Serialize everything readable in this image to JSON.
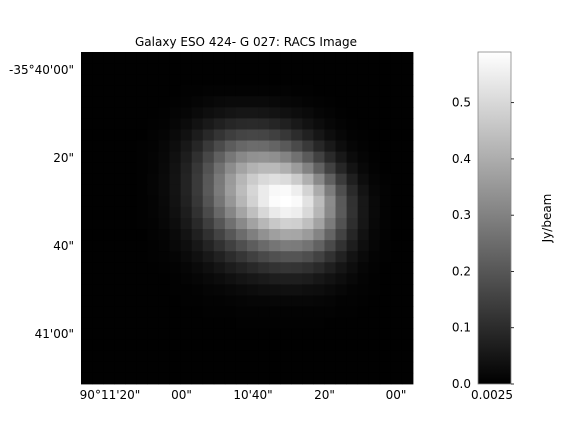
{
  "chart_data": {
    "type": "heatmap",
    "title": "Galaxy ESO 424- G 027: RACS Image",
    "x_tick_labels": [
      "90°11'20\"",
      "00\"",
      "10'40\"",
      "20\"",
      "00\""
    ],
    "y_tick_labels": [
      "-35°40'00\"",
      "20\"",
      "40\"",
      "41'00\""
    ],
    "colorbar": {
      "label": "Jy/beam",
      "ticks": [
        0.0,
        0.1,
        0.2,
        0.3,
        0.4,
        0.5
      ],
      "tick_labels": [
        "0.0",
        "0.1",
        "0.2",
        "0.3",
        "0.4",
        "0.5"
      ],
      "x_tick_label": "0.0025",
      "vmin": 0.0,
      "vmax": 0.59,
      "colormap": "gray"
    },
    "grid": false,
    "values": [
      [
        0.002,
        0.002,
        0.002,
        0.002,
        0.002,
        0.002,
        0.002,
        0.002,
        0.002,
        0.002,
        0.002,
        0.002,
        0.002,
        0.002,
        0.002,
        0.002,
        0.002,
        0.002,
        0.002,
        0.002,
        0.002,
        0.002,
        0.002,
        0.002,
        0.002,
        0.002,
        0.002,
        0.002,
        0.002,
        0.002
      ],
      [
        0.002,
        0.002,
        0.002,
        0.002,
        0.002,
        0.002,
        0.002,
        0.002,
        0.002,
        0.002,
        0.002,
        0.002,
        0.002,
        0.002,
        0.002,
        0.002,
        0.002,
        0.002,
        0.002,
        0.002,
        0.002,
        0.002,
        0.002,
        0.002,
        0.002,
        0.002,
        0.002,
        0.002,
        0.002,
        0.002
      ],
      [
        0.002,
        0.002,
        0.002,
        0.002,
        0.002,
        0.002,
        0.002,
        0.002,
        0.002,
        0.002,
        0.003,
        0.003,
        0.003,
        0.003,
        0.003,
        0.003,
        0.003,
        0.003,
        0.003,
        0.003,
        0.002,
        0.002,
        0.002,
        0.002,
        0.002,
        0.002,
        0.002,
        0.002,
        0.002,
        0.002
      ],
      [
        0.002,
        0.002,
        0.002,
        0.002,
        0.002,
        0.002,
        0.002,
        0.002,
        0.003,
        0.004,
        0.005,
        0.006,
        0.007,
        0.008,
        0.008,
        0.008,
        0.008,
        0.007,
        0.006,
        0.005,
        0.004,
        0.003,
        0.002,
        0.002,
        0.002,
        0.002,
        0.002,
        0.002,
        0.002,
        0.002
      ],
      [
        0.002,
        0.002,
        0.002,
        0.002,
        0.002,
        0.002,
        0.002,
        0.003,
        0.005,
        0.008,
        0.012,
        0.016,
        0.02,
        0.022,
        0.023,
        0.023,
        0.022,
        0.02,
        0.017,
        0.013,
        0.009,
        0.006,
        0.004,
        0.003,
        0.002,
        0.002,
        0.002,
        0.002,
        0.002,
        0.002
      ],
      [
        0.002,
        0.002,
        0.002,
        0.002,
        0.002,
        0.002,
        0.003,
        0.005,
        0.009,
        0.015,
        0.023,
        0.032,
        0.04,
        0.046,
        0.05,
        0.051,
        0.049,
        0.045,
        0.038,
        0.03,
        0.022,
        0.014,
        0.009,
        0.005,
        0.003,
        0.002,
        0.002,
        0.002,
        0.002,
        0.002
      ],
      [
        0.002,
        0.002,
        0.002,
        0.002,
        0.002,
        0.002,
        0.004,
        0.008,
        0.015,
        0.026,
        0.041,
        0.058,
        0.074,
        0.087,
        0.095,
        0.097,
        0.094,
        0.086,
        0.073,
        0.058,
        0.042,
        0.028,
        0.016,
        0.009,
        0.005,
        0.003,
        0.002,
        0.002,
        0.002,
        0.002
      ],
      [
        0.002,
        0.002,
        0.002,
        0.002,
        0.002,
        0.003,
        0.006,
        0.012,
        0.023,
        0.04,
        0.064,
        0.092,
        0.12,
        0.143,
        0.158,
        0.163,
        0.159,
        0.147,
        0.127,
        0.102,
        0.076,
        0.051,
        0.031,
        0.017,
        0.008,
        0.004,
        0.002,
        0.002,
        0.002,
        0.002
      ],
      [
        0.002,
        0.002,
        0.002,
        0.002,
        0.002,
        0.004,
        0.008,
        0.016,
        0.031,
        0.055,
        0.089,
        0.131,
        0.174,
        0.212,
        0.239,
        0.25,
        0.247,
        0.232,
        0.206,
        0.171,
        0.131,
        0.091,
        0.057,
        0.031,
        0.015,
        0.006,
        0.003,
        0.002,
        0.002,
        0.002
      ],
      [
        0.002,
        0.002,
        0.002,
        0.002,
        0.002,
        0.004,
        0.009,
        0.019,
        0.038,
        0.068,
        0.111,
        0.165,
        0.223,
        0.275,
        0.315,
        0.336,
        0.341,
        0.331,
        0.303,
        0.262,
        0.209,
        0.151,
        0.097,
        0.055,
        0.026,
        0.011,
        0.004,
        0.002,
        0.002,
        0.002
      ],
      [
        0.002,
        0.002,
        0.002,
        0.002,
        0.003,
        0.005,
        0.01,
        0.021,
        0.042,
        0.077,
        0.127,
        0.19,
        0.259,
        0.324,
        0.377,
        0.411,
        0.428,
        0.427,
        0.405,
        0.362,
        0.3,
        0.225,
        0.15,
        0.087,
        0.043,
        0.018,
        0.006,
        0.003,
        0.002,
        0.002
      ],
      [
        0.002,
        0.002,
        0.002,
        0.002,
        0.003,
        0.005,
        0.011,
        0.022,
        0.044,
        0.081,
        0.135,
        0.204,
        0.281,
        0.356,
        0.421,
        0.469,
        0.502,
        0.516,
        0.506,
        0.469,
        0.405,
        0.318,
        0.222,
        0.136,
        0.071,
        0.031,
        0.011,
        0.004,
        0.002,
        0.002
      ],
      [
        0.002,
        0.002,
        0.002,
        0.002,
        0.003,
        0.005,
        0.011,
        0.022,
        0.044,
        0.081,
        0.135,
        0.205,
        0.284,
        0.363,
        0.435,
        0.496,
        0.544,
        0.574,
        0.578,
        0.55,
        0.488,
        0.396,
        0.286,
        0.18,
        0.097,
        0.045,
        0.017,
        0.006,
        0.003,
        0.002
      ],
      [
        0.002,
        0.002,
        0.002,
        0.002,
        0.003,
        0.005,
        0.01,
        0.021,
        0.042,
        0.077,
        0.128,
        0.194,
        0.27,
        0.347,
        0.421,
        0.487,
        0.543,
        0.582,
        0.597,
        0.578,
        0.523,
        0.434,
        0.321,
        0.207,
        0.114,
        0.053,
        0.02,
        0.007,
        0.003,
        0.002
      ],
      [
        0.002,
        0.002,
        0.002,
        0.002,
        0.002,
        0.004,
        0.009,
        0.019,
        0.037,
        0.068,
        0.113,
        0.172,
        0.24,
        0.31,
        0.379,
        0.443,
        0.499,
        0.541,
        0.561,
        0.55,
        0.503,
        0.422,
        0.317,
        0.208,
        0.116,
        0.054,
        0.021,
        0.007,
        0.003,
        0.002
      ],
      [
        0.002,
        0.002,
        0.002,
        0.002,
        0.002,
        0.004,
        0.008,
        0.016,
        0.031,
        0.057,
        0.094,
        0.143,
        0.199,
        0.259,
        0.318,
        0.374,
        0.424,
        0.463,
        0.484,
        0.479,
        0.443,
        0.376,
        0.285,
        0.189,
        0.106,
        0.05,
        0.019,
        0.007,
        0.003,
        0.002
      ],
      [
        0.002,
        0.002,
        0.002,
        0.002,
        0.002,
        0.003,
        0.006,
        0.012,
        0.024,
        0.044,
        0.073,
        0.111,
        0.155,
        0.202,
        0.249,
        0.294,
        0.335,
        0.368,
        0.387,
        0.385,
        0.358,
        0.305,
        0.232,
        0.155,
        0.088,
        0.042,
        0.016,
        0.006,
        0.002,
        0.002
      ],
      [
        0.002,
        0.002,
        0.002,
        0.002,
        0.002,
        0.003,
        0.005,
        0.009,
        0.018,
        0.032,
        0.053,
        0.081,
        0.113,
        0.148,
        0.183,
        0.216,
        0.246,
        0.271,
        0.286,
        0.285,
        0.265,
        0.226,
        0.172,
        0.115,
        0.066,
        0.032,
        0.013,
        0.005,
        0.002,
        0.002
      ],
      [
        0.002,
        0.002,
        0.002,
        0.002,
        0.002,
        0.002,
        0.004,
        0.007,
        0.012,
        0.022,
        0.036,
        0.055,
        0.077,
        0.101,
        0.125,
        0.148,
        0.168,
        0.185,
        0.195,
        0.194,
        0.18,
        0.153,
        0.116,
        0.078,
        0.045,
        0.022,
        0.009,
        0.004,
        0.002,
        0.002
      ],
      [
        0.002,
        0.002,
        0.002,
        0.002,
        0.002,
        0.002,
        0.003,
        0.005,
        0.008,
        0.014,
        0.023,
        0.035,
        0.049,
        0.064,
        0.079,
        0.093,
        0.106,
        0.116,
        0.122,
        0.121,
        0.112,
        0.095,
        0.072,
        0.049,
        0.029,
        0.015,
        0.007,
        0.003,
        0.002,
        0.002
      ],
      [
        0.002,
        0.002,
        0.002,
        0.002,
        0.002,
        0.002,
        0.002,
        0.003,
        0.005,
        0.009,
        0.014,
        0.02,
        0.028,
        0.037,
        0.046,
        0.054,
        0.061,
        0.067,
        0.07,
        0.069,
        0.064,
        0.054,
        0.042,
        0.029,
        0.018,
        0.009,
        0.005,
        0.003,
        0.002,
        0.002
      ],
      [
        0.002,
        0.002,
        0.002,
        0.002,
        0.002,
        0.002,
        0.002,
        0.003,
        0.004,
        0.005,
        0.008,
        0.011,
        0.015,
        0.019,
        0.024,
        0.028,
        0.032,
        0.035,
        0.036,
        0.036,
        0.033,
        0.029,
        0.022,
        0.016,
        0.01,
        0.006,
        0.004,
        0.002,
        0.002,
        0.002
      ],
      [
        0.002,
        0.002,
        0.002,
        0.002,
        0.002,
        0.002,
        0.002,
        0.002,
        0.003,
        0.004,
        0.005,
        0.006,
        0.008,
        0.01,
        0.012,
        0.013,
        0.015,
        0.016,
        0.017,
        0.017,
        0.016,
        0.014,
        0.011,
        0.008,
        0.006,
        0.004,
        0.003,
        0.002,
        0.002,
        0.002
      ],
      [
        0.002,
        0.002,
        0.002,
        0.002,
        0.002,
        0.002,
        0.002,
        0.002,
        0.002,
        0.003,
        0.003,
        0.004,
        0.005,
        0.005,
        0.006,
        0.007,
        0.007,
        0.008,
        0.008,
        0.008,
        0.008,
        0.007,
        0.006,
        0.005,
        0.004,
        0.003,
        0.002,
        0.002,
        0.002,
        0.002
      ],
      [
        0.002,
        0.002,
        0.002,
        0.002,
        0.002,
        0.002,
        0.002,
        0.002,
        0.002,
        0.002,
        0.003,
        0.003,
        0.003,
        0.003,
        0.004,
        0.004,
        0.004,
        0.004,
        0.004,
        0.004,
        0.004,
        0.004,
        0.003,
        0.003,
        0.003,
        0.002,
        0.002,
        0.002,
        0.002,
        0.002
      ],
      [
        0.002,
        0.002,
        0.002,
        0.002,
        0.002,
        0.002,
        0.002,
        0.002,
        0.002,
        0.002,
        0.002,
        0.002,
        0.002,
        0.003,
        0.003,
        0.003,
        0.003,
        0.003,
        0.003,
        0.003,
        0.003,
        0.003,
        0.002,
        0.002,
        0.002,
        0.002,
        0.002,
        0.002,
        0.002,
        0.002
      ],
      [
        0.002,
        0.002,
        0.002,
        0.002,
        0.002,
        0.002,
        0.002,
        0.002,
        0.002,
        0.002,
        0.002,
        0.002,
        0.002,
        0.002,
        0.002,
        0.002,
        0.002,
        0.002,
        0.002,
        0.002,
        0.002,
        0.002,
        0.002,
        0.002,
        0.002,
        0.002,
        0.002,
        0.002,
        0.002,
        0.002
      ],
      [
        0.002,
        0.002,
        0.002,
        0.002,
        0.002,
        0.002,
        0.002,
        0.002,
        0.002,
        0.002,
        0.002,
        0.002,
        0.002,
        0.002,
        0.002,
        0.002,
        0.002,
        0.002,
        0.002,
        0.002,
        0.002,
        0.002,
        0.002,
        0.002,
        0.002,
        0.002,
        0.002,
        0.002,
        0.002,
        0.002
      ],
      [
        0.002,
        0.002,
        0.002,
        0.002,
        0.002,
        0.002,
        0.002,
        0.002,
        0.002,
        0.002,
        0.002,
        0.002,
        0.002,
        0.002,
        0.002,
        0.002,
        0.002,
        0.002,
        0.002,
        0.002,
        0.002,
        0.002,
        0.002,
        0.002,
        0.002,
        0.002,
        0.002,
        0.002,
        0.002,
        0.002
      ],
      [
        0.002,
        0.002,
        0.002,
        0.002,
        0.002,
        0.002,
        0.002,
        0.002,
        0.002,
        0.002,
        0.002,
        0.002,
        0.002,
        0.002,
        0.002,
        0.002,
        0.002,
        0.002,
        0.002,
        0.002,
        0.002,
        0.002,
        0.002,
        0.002,
        0.002,
        0.002,
        0.002,
        0.002,
        0.002,
        0.002
      ]
    ]
  }
}
